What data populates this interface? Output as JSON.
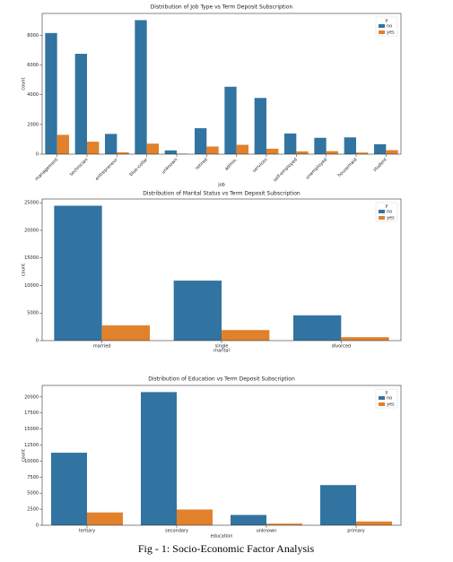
{
  "caption": "Fig - 1: Socio-Economic Factor Analysis",
  "chart_data": [
    {
      "type": "bar",
      "title": "Distribution of Job Type vs Term Deposit Subscription",
      "x_label": "job",
      "y_label": "count",
      "categories": [
        "management",
        "technician",
        "entrepreneur",
        "blue-collar",
        "unknown",
        "retired",
        "admin.",
        "services",
        "self-employed",
        "unemployed",
        "housemaid",
        "student"
      ],
      "series": [
        {
          "name": "no",
          "color": "#3274a1",
          "values": [
            8157,
            6757,
            1364,
            9024,
            254,
            1748,
            4540,
            3785,
            1392,
            1101,
            1131,
            669
          ]
        },
        {
          "name": "yes",
          "color": "#e1812c",
          "values": [
            1301,
            840,
            123,
            708,
            34,
            516,
            631,
            369,
            187,
            202,
            109,
            269
          ]
        }
      ],
      "ylim": [
        0,
        9475
      ],
      "yticks": [
        0,
        2000,
        4000,
        6000,
        8000
      ],
      "legend_title": "y",
      "legend": "upper right",
      "grid": false,
      "rotate_labels": true
    },
    {
      "type": "bar",
      "title": "Distribution of Marital Status vs Term Deposit Subscription",
      "x_label": "marital",
      "y_label": "count",
      "categories": [
        "married",
        "single",
        "divorced"
      ],
      "series": [
        {
          "name": "no",
          "color": "#3274a1",
          "values": [
            24459,
            10878,
            4585
          ]
        },
        {
          "name": "yes",
          "color": "#e1812c",
          "values": [
            2755,
            1912,
            622
          ]
        }
      ],
      "ylim": [
        0,
        25682
      ],
      "yticks": [
        0,
        5000,
        10000,
        15000,
        20000,
        25000
      ],
      "legend_title": "y",
      "legend": "upper right",
      "grid": false,
      "rotate_labels": false
    },
    {
      "type": "bar",
      "title": "Distribution of Education vs Term Deposit Subscription",
      "x_label": "education",
      "y_label": "count",
      "categories": [
        "tertiary",
        "secondary",
        "unknown",
        "primary"
      ],
      "series": [
        {
          "name": "no",
          "color": "#3274a1",
          "values": [
            11305,
            20752,
            1605,
            6260
          ]
        },
        {
          "name": "yes",
          "color": "#e1812c",
          "values": [
            1996,
            2450,
            252,
            591
          ]
        }
      ],
      "ylim": [
        0,
        21790
      ],
      "yticks": [
        0,
        2500,
        5000,
        7500,
        10000,
        12500,
        15000,
        17500,
        20000
      ],
      "legend_title": "y",
      "legend": "upper right",
      "grid": false,
      "rotate_labels": false
    }
  ]
}
